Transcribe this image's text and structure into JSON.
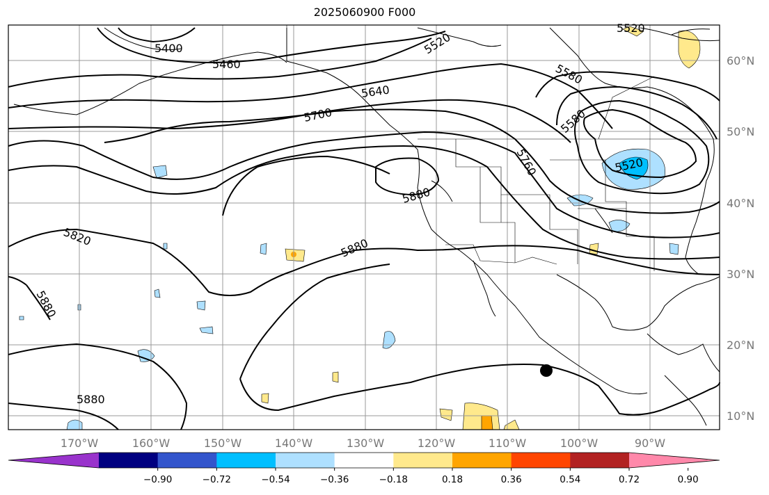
{
  "title": "2025060900 F000",
  "map": {
    "longitude_labels": [
      "170°W",
      "160°W",
      "150°W",
      "140°W",
      "130°W",
      "120°W",
      "110°W",
      "100°W",
      "90°W"
    ],
    "latitude_labels": [
      "60°N",
      "50°N",
      "40°N",
      "30°N",
      "20°N",
      "10°N"
    ],
    "contour_labels": [
      "5400",
      "5460",
      "5520",
      "5640",
      "5700",
      "5580",
      "5580",
      "5760",
      "5520",
      "5880",
      "5880",
      "5820",
      "5880",
      "5880",
      "5520"
    ],
    "marker": "storm-position-dot"
  },
  "colorbar": {
    "ticks": [
      "−0.90",
      "−0.72",
      "−0.54",
      "−0.36",
      "−0.18",
      "0.18",
      "0.36",
      "0.54",
      "0.72",
      "0.90"
    ],
    "colors": [
      "#9933cc",
      "#000080",
      "#3355cc",
      "#00bfff",
      "#aee0ff",
      "#ffffff",
      "#ffe98c",
      "#ffa500",
      "#ff4500",
      "#b22222",
      "#ff88aa"
    ]
  }
}
